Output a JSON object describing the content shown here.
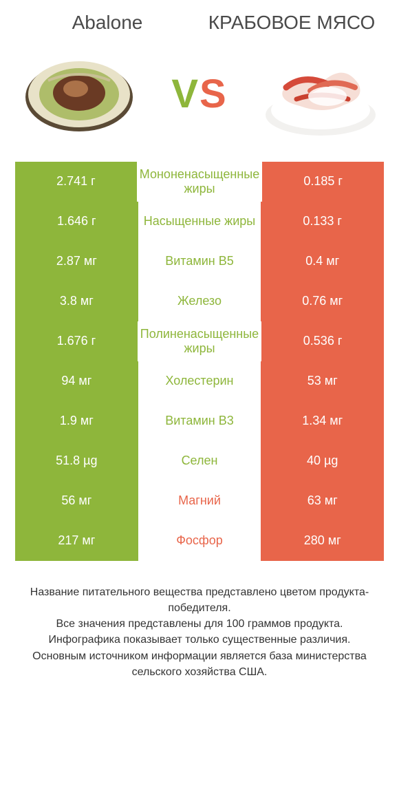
{
  "colors": {
    "green": "#8eb63b",
    "orange": "#e8654a",
    "white": "#ffffff",
    "text": "#333333"
  },
  "titles": {
    "left": "Abalone",
    "right": "КРАБОВОЕ МЯСО"
  },
  "vs": {
    "v": "V",
    "s": "S"
  },
  "rows": [
    {
      "left": "2.741 г",
      "label": "Мононенасыщенные жиры",
      "right": "0.185 г",
      "winner": "left"
    },
    {
      "left": "1.646 г",
      "label": "Насыщенные жиры",
      "right": "0.133 г",
      "winner": "left"
    },
    {
      "left": "2.87 мг",
      "label": "Витамин B5",
      "right": "0.4 мг",
      "winner": "left"
    },
    {
      "left": "3.8 мг",
      "label": "Железо",
      "right": "0.76 мг",
      "winner": "left"
    },
    {
      "left": "1.676 г",
      "label": "Полиненасыщенные жиры",
      "right": "0.536 г",
      "winner": "left"
    },
    {
      "left": "94 мг",
      "label": "Холестерин",
      "right": "53 мг",
      "winner": "left"
    },
    {
      "left": "1.9 мг",
      "label": "Витамин B3",
      "right": "1.34 мг",
      "winner": "left"
    },
    {
      "left": "51.8 µg",
      "label": "Селен",
      "right": "40 µg",
      "winner": "left"
    },
    {
      "left": "56 мг",
      "label": "Магний",
      "right": "63 мг",
      "winner": "right"
    },
    {
      "left": "217 мг",
      "label": "Фосфор",
      "right": "280 мг",
      "winner": "right"
    }
  ],
  "footer": {
    "l1": "Название питательного вещества представлено цветом продукта-победителя.",
    "l2": "Все значения представлены для 100 граммов продукта.",
    "l3": "Инфографика показывает только существенные различия.",
    "l4": "Основным источником информации является база министерства сельского хозяйства США."
  }
}
